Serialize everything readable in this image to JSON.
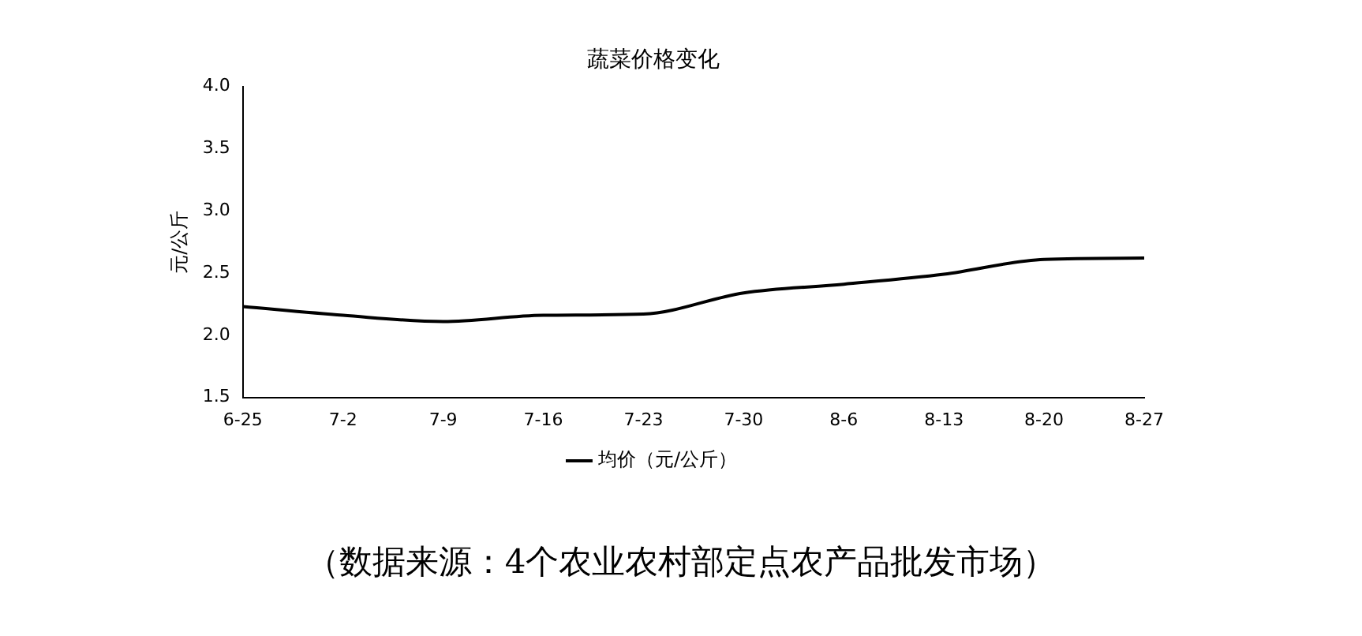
{
  "chart_data": {
    "type": "line",
    "title": "蔬菜价格变化",
    "ylabel": "元/公斤",
    "categories": [
      "6-25",
      "7-2",
      "7-9",
      "7-16",
      "7-23",
      "7-30",
      "8-6",
      "8-13",
      "8-20",
      "8-27"
    ],
    "series": [
      {
        "name": "均价（元/公斤）",
        "color": "#000000",
        "values": [
          2.23,
          2.16,
          2.11,
          2.16,
          2.17,
          2.34,
          2.41,
          2.49,
          2.61,
          2.62
        ]
      }
    ],
    "ylim": [
      1.5,
      4.0
    ],
    "yticks": [
      {
        "value": 1.5,
        "label": "1.5"
      },
      {
        "value": 2,
        "label": "2.0"
      },
      {
        "value": 2.5,
        "label": "2.5"
      },
      {
        "value": 3,
        "label": "3.0"
      },
      {
        "value": 3.5,
        "label": "3.5"
      },
      {
        "value": 4,
        "label": "4.0"
      }
    ],
    "legend": "bottom",
    "marker": "none",
    "line_style": "solid",
    "annotations": [
      "（数据来源：4个农业农村部定点农产品批发市场）"
    ]
  }
}
